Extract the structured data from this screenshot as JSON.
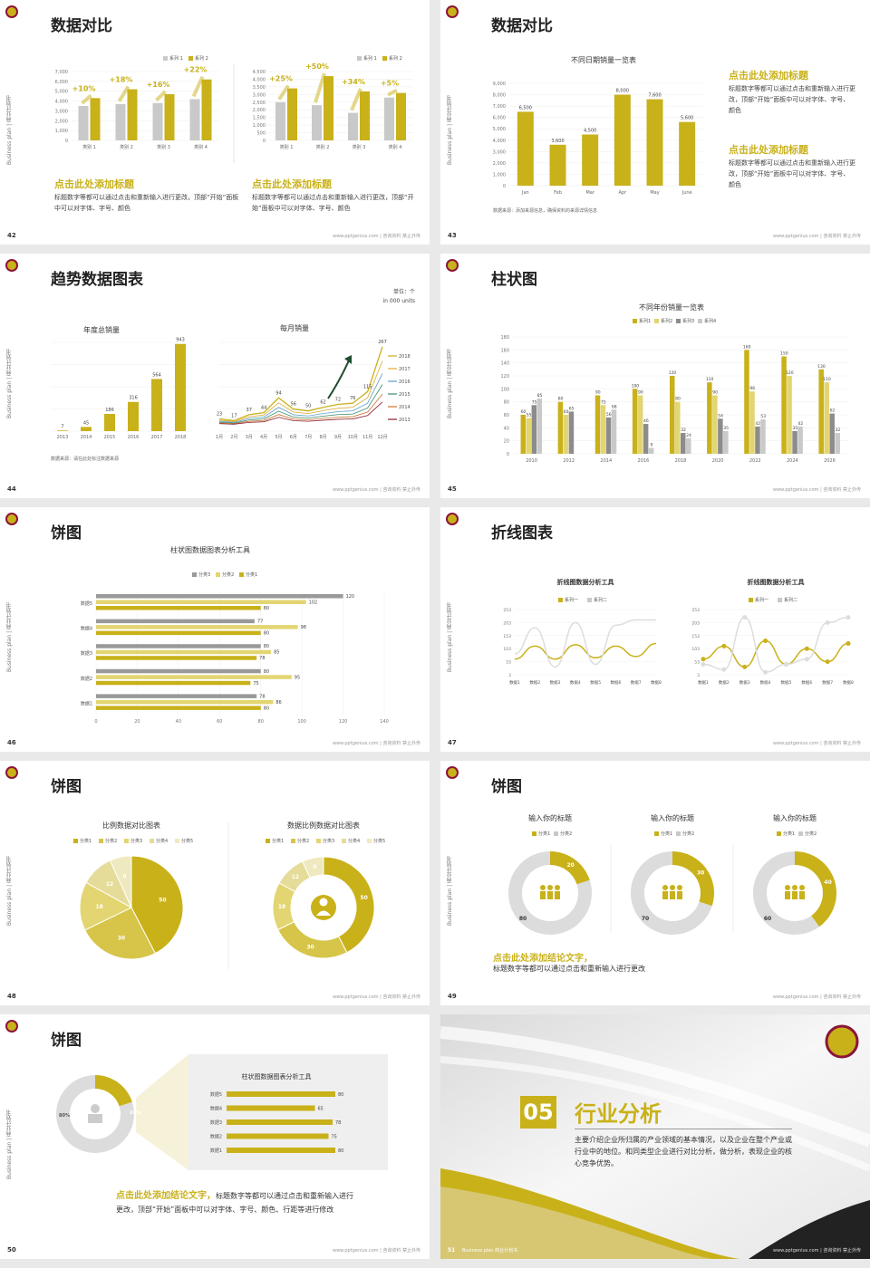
{
  "common": {
    "side_label": "Business plan | 商业计划书",
    "footer": "www.pptgenius.com | 咨询资料 禁止外传",
    "accent": "#c9b11a",
    "accent_light": "#e3d571",
    "gray": "#c9c9c9"
  },
  "s42": {
    "title": "数据对比",
    "page": "42",
    "chart_left": {
      "legend": [
        "系列 1",
        "系列 2"
      ],
      "categories": [
        "类别 1",
        "类别 2",
        "类别 3",
        "类别 4"
      ],
      "yticks": [
        "7,000",
        "6,000",
        "5,000",
        "4,000",
        "3,000",
        "2,000",
        "1,000",
        "0"
      ],
      "deltas": [
        "+10%",
        "+18%",
        "+16%",
        "+22%"
      ]
    },
    "chart_right": {
      "legend": [
        "系列 1",
        "系列 2"
      ],
      "categories": [
        "类别 1",
        "类别 2",
        "类别 3",
        "类别 4"
      ],
      "yticks": [
        "4,500",
        "4,000",
        "3,500",
        "3,000",
        "2,500",
        "2,000",
        "1,500",
        "1,000",
        "500",
        "0"
      ],
      "deltas": [
        "+25%",
        "+50%",
        "+34%",
        "+5%"
      ]
    },
    "heading_left": "点击此处添加标题",
    "text_left": "标题数字等都可以通过点击和重新输入进行更改，顶部“开始”面板中可以对字体、字号、颜色",
    "heading_right": "点击此处添加标题",
    "text_right": "标题数字等都可以通过点击和重新输入进行更改，顶部“开始”面板中可以对字体、字号、颜色"
  },
  "s43": {
    "title": "数据对比",
    "page": "43",
    "chart_title": "不同日期销量一览表",
    "source": "数据来源：添加来源信息，确保资料的来源详情信息",
    "heading1": "点击此处添加标题",
    "text1": "标题数字等都可以通过点击和重新输入进行更改，顶部“开始”面板中可以对字体、字号、颜色",
    "heading2": "点击此处添加标题",
    "text2": "标题数字等都可以通过点击和重新输入进行更改，顶部“开始”面板中可以对字体、字号、颜色"
  },
  "s44": {
    "title": "趋势数据图表",
    "page": "44",
    "unit1": "单位：个",
    "unit2": "in 000 units",
    "left_title": "年度总销量",
    "right_title": "每月销量",
    "source": "数据来源：请在此处标注数据来源",
    "legend_years": [
      "2018",
      "2017",
      "2016",
      "2015",
      "2014",
      "2013"
    ]
  },
  "s45": {
    "title": "柱状图",
    "page": "45",
    "chart_title": "不同年份销量一览表",
    "legend": [
      "系列1",
      "系列2",
      "系列3",
      "系列4"
    ]
  },
  "s46": {
    "title": "饼图",
    "page": "46",
    "chart_title": "柱状图数据图表分析工具",
    "legend": [
      "分类3",
      "分类2",
      "分类1"
    ]
  },
  "s47": {
    "title": "折线图表",
    "page": "47",
    "chart_title_left": "折线图数据分析工具",
    "chart_title_right": "折线图数据分析工具",
    "legend": [
      "系列一",
      "系列二"
    ],
    "yticks": [
      "253",
      "203",
      "153",
      "103",
      "53",
      "3"
    ],
    "xcats": [
      "数据1",
      "数据2",
      "数据3",
      "数据4",
      "数据5",
      "数据6",
      "数据7",
      "数据8"
    ]
  },
  "s48": {
    "title": "饼图",
    "page": "48",
    "left_title": "比例数据对比图表",
    "right_title": "数据比例数据对比图表",
    "legend": [
      "分类1",
      "分类2",
      "分类3",
      "分类4",
      "分类5"
    ]
  },
  "s49": {
    "title": "饼图",
    "page": "49",
    "donut_titles": [
      "输入你的标题",
      "输入你的标题",
      "输入你的标题"
    ],
    "legend": [
      "分类1",
      "分类2"
    ],
    "conclusion_head": "点击此处添加结论文字，",
    "conclusion_text": "标题数字等都可以通过点击和重新输入进行更改"
  },
  "s50": {
    "title": "饼图",
    "page": "50",
    "chart_title": "柱状图数据图表分析工具",
    "conclusion_head": "点击此处添加结论文字，",
    "conclusion_text1": "标题数字等都可以通过点击和重新输入进行",
    "conclusion_text2": "更改，顶部“开始”面板中可以对字体、字号、颜色、行距等进行修改"
  },
  "s51": {
    "page": "51",
    "section_no": "05",
    "section_title": "行业分析",
    "section_text": "主要介绍企业所归属的产业领域的基本情况，以及企业在整个产业或行业中的地位。和同类型企业进行对比分析，做分析，表现企业的核心竞争优势。",
    "bottom_label": "Business plan  商业计划书"
  },
  "chart_data": [
    {
      "type": "bar",
      "chart": "s42-left",
      "categories": [
        "类别 1",
        "类别 2",
        "类别 3",
        "类别 4"
      ],
      "series": [
        {
          "name": "系列 1",
          "values": [
            3500,
            3700,
            3800,
            4200
          ]
        },
        {
          "name": "系列 2",
          "values": [
            4300,
            5200,
            4700,
            6200
          ]
        }
      ],
      "ylim": [
        0,
        7000
      ]
    },
    {
      "type": "bar",
      "chart": "s42-right",
      "categories": [
        "类别 1",
        "类别 2",
        "类别 3",
        "类别 4"
      ],
      "series": [
        {
          "name": "系列 1",
          "values": [
            2500,
            2300,
            1800,
            2800
          ]
        },
        {
          "name": "系列 2",
          "values": [
            3400,
            4200,
            3200,
            3100
          ]
        }
      ],
      "ylim": [
        0,
        4500
      ]
    },
    {
      "type": "bar",
      "chart": "s43",
      "title": "不同日期销量一览表",
      "categories": [
        "Jan",
        "Feb",
        "Mar",
        "Apr",
        "May",
        "June"
      ],
      "values": [
        6500,
        3600,
        4500,
        8000,
        7600,
        5600
      ],
      "ylim": [
        0,
        9000
      ],
      "yticks": [
        "9,000",
        "8,000",
        "7,000",
        "6,000",
        "5,000",
        "4,000",
        "3,000",
        "2,000",
        "1,000",
        "0"
      ],
      "labels": [
        "6,500",
        "3,600",
        "4,500",
        "8,000",
        "7,600",
        "5,600"
      ]
    },
    {
      "type": "bar",
      "chart": "s44-left",
      "title": "年度总销量",
      "categories": [
        "2013",
        "2014",
        "2015",
        "2016",
        "2017",
        "2018"
      ],
      "values": [
        7,
        45,
        186,
        316,
        564,
        943
      ]
    },
    {
      "type": "line",
      "chart": "s44-right",
      "title": "每月销量",
      "categories": [
        "1月",
        "2月",
        "3月",
        "4月",
        "5月",
        "6月",
        "7月",
        "8月",
        "9月",
        "10月",
        "11月",
        "12月"
      ],
      "values": [
        23,
        17,
        37,
        44,
        94,
        56,
        50,
        62,
        72,
        76,
        115,
        267
      ]
    },
    {
      "type": "bar",
      "chart": "s45",
      "title": "不同年份销量一览表",
      "categories": [
        "2010",
        "2012",
        "2014",
        "2016",
        "2018",
        "2020",
        "2022",
        "2024",
        "2026"
      ],
      "series": [
        {
          "name": "系列1",
          "values": [
            60,
            80,
            90,
            100,
            120,
            110,
            160,
            150,
            130
          ]
        },
        {
          "name": "系列2",
          "values": [
            55,
            60,
            75,
            90,
            80,
            90,
            96,
            120,
            110
          ]
        },
        {
          "name": "系列3",
          "values": [
            75,
            65,
            56,
            46,
            32,
            54,
            42,
            35,
            62
          ]
        },
        {
          "name": "系列4",
          "values": [
            85,
            null,
            68,
            9,
            24,
            35,
            53,
            42,
            32
          ]
        }
      ],
      "ylim": [
        0,
        180
      ],
      "yticks": [
        "180",
        "160",
        "140",
        "120",
        "100",
        "80",
        "60",
        "40",
        "20",
        "0"
      ]
    },
    {
      "type": "bar",
      "chart": "s46",
      "title": "柱状图数据图表分析工具",
      "orientation": "horizontal",
      "categories": [
        "数据5",
        "数据4",
        "数据3",
        "数据2",
        "数据1"
      ],
      "series": [
        {
          "name": "分类3",
          "values": [
            120,
            77,
            80,
            80,
            78
          ]
        },
        {
          "name": "分类2",
          "values": [
            102,
            98,
            85,
            95,
            86
          ]
        },
        {
          "name": "分类1",
          "values": [
            80,
            80,
            78,
            75,
            80
          ]
        }
      ],
      "xticks": [
        "0",
        "20",
        "40",
        "60",
        "80",
        "100",
        "120",
        "140"
      ]
    },
    {
      "type": "line",
      "chart": "s47-left",
      "series": [
        {
          "name": "系列一",
          "values": [
            60,
            110,
            60,
            115,
            65,
            110,
            70,
            120
          ]
        },
        {
          "name": "系列二",
          "values": [
            80,
            180,
            30,
            200,
            40,
            190,
            210,
            210
          ]
        }
      ]
    },
    {
      "type": "line",
      "chart": "s47-right",
      "series": [
        {
          "name": "系列一",
          "values": [
            60,
            110,
            30,
            130,
            40,
            100,
            50,
            120
          ]
        },
        {
          "name": "系列二",
          "values": [
            40,
            20,
            220,
            10,
            40,
            60,
            200,
            220
          ]
        }
      ]
    },
    {
      "type": "pie",
      "chart": "s48-left",
      "title": "比例数据对比图表",
      "labels": [
        "分类1",
        "分类2",
        "分类3",
        "分类4",
        "分类5"
      ],
      "values": [
        50,
        30,
        18,
        12,
        8
      ]
    },
    {
      "type": "pie",
      "chart": "s48-right",
      "title": "数据比例数据对比图表",
      "labels": [
        "分类1",
        "分类2",
        "分类3",
        "分类4",
        "分类5"
      ],
      "values": [
        50,
        30,
        18,
        12,
        8
      ]
    },
    {
      "type": "pie",
      "chart": "s49-1",
      "values": [
        20,
        80
      ]
    },
    {
      "type": "pie",
      "chart": "s49-2",
      "values": [
        30,
        70
      ]
    },
    {
      "type": "pie",
      "chart": "s49-3",
      "values": [
        40,
        60
      ]
    },
    {
      "type": "pie",
      "chart": "s50-donut",
      "labels": [
        "80%",
        "20%"
      ],
      "values": [
        80,
        20
      ]
    },
    {
      "type": "bar",
      "chart": "s50-bars",
      "title": "柱状图数据图表分析工具",
      "orientation": "horizontal",
      "categories": [
        "数据5",
        "数据4",
        "数据3",
        "数据2",
        "数据1"
      ],
      "values": [
        80,
        65,
        78,
        75,
        80
      ]
    }
  ]
}
